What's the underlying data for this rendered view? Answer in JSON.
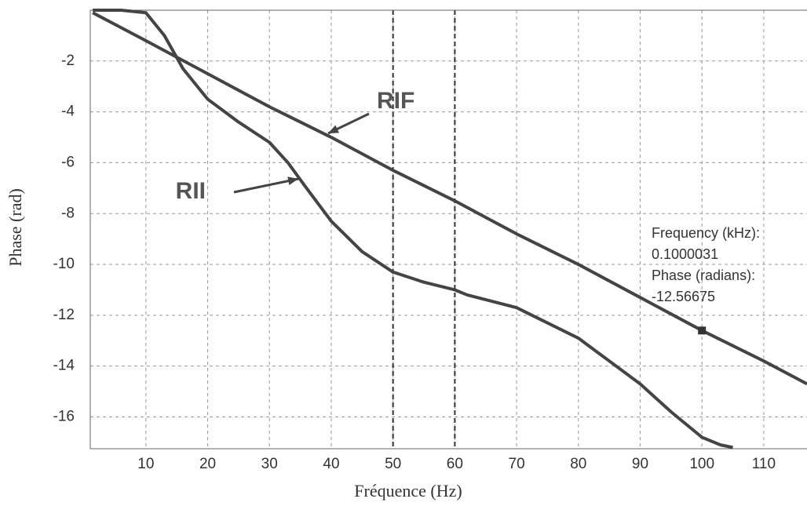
{
  "chart_data": {
    "type": "line",
    "x_label": "Fréquence (Hz)",
    "y_label": "Phase  (rad)",
    "xlim": [
      1,
      117
    ],
    "xticks": [
      10,
      20,
      30,
      40,
      50,
      60,
      70,
      80,
      90,
      100,
      110
    ],
    "ylim": [
      -17.25,
      0
    ],
    "yticks": [
      -2,
      -4,
      -6,
      -8,
      -10,
      -12,
      -14,
      -16
    ],
    "grid": true,
    "marker_lines": [
      50,
      60
    ],
    "series": [
      {
        "name": "RIF",
        "color": "#444444",
        "x": [
          1.4,
          10,
          20,
          30,
          40,
          50,
          60,
          70,
          80,
          90,
          100,
          110,
          117
        ],
        "values": [
          -0.1,
          -1.2,
          -2.5,
          -3.8,
          -5.0,
          -6.3,
          -7.5,
          -8.8,
          -10.0,
          -11.3,
          -12.6,
          -13.8,
          -14.7
        ]
      },
      {
        "name": "RII",
        "color": "#444444",
        "x": [
          1.4,
          6,
          10,
          13,
          16,
          20,
          25,
          30,
          33,
          36,
          40,
          45,
          50,
          55,
          60,
          62,
          70,
          80,
          85,
          90,
          95,
          100,
          103,
          105
        ],
        "values": [
          0,
          0,
          -0.1,
          -1.0,
          -2.3,
          -3.5,
          -4.4,
          -5.2,
          -6.0,
          -7.0,
          -8.3,
          -9.5,
          -10.3,
          -10.7,
          -11.0,
          -11.2,
          -11.7,
          -12.9,
          -13.8,
          -14.7,
          -15.8,
          -16.8,
          -17.1,
          -17.2
        ]
      }
    ],
    "datatip": [
      "Frequency (kHz):",
      "0.1000031",
      "Phase (radians):",
      "-12.56675"
    ]
  }
}
